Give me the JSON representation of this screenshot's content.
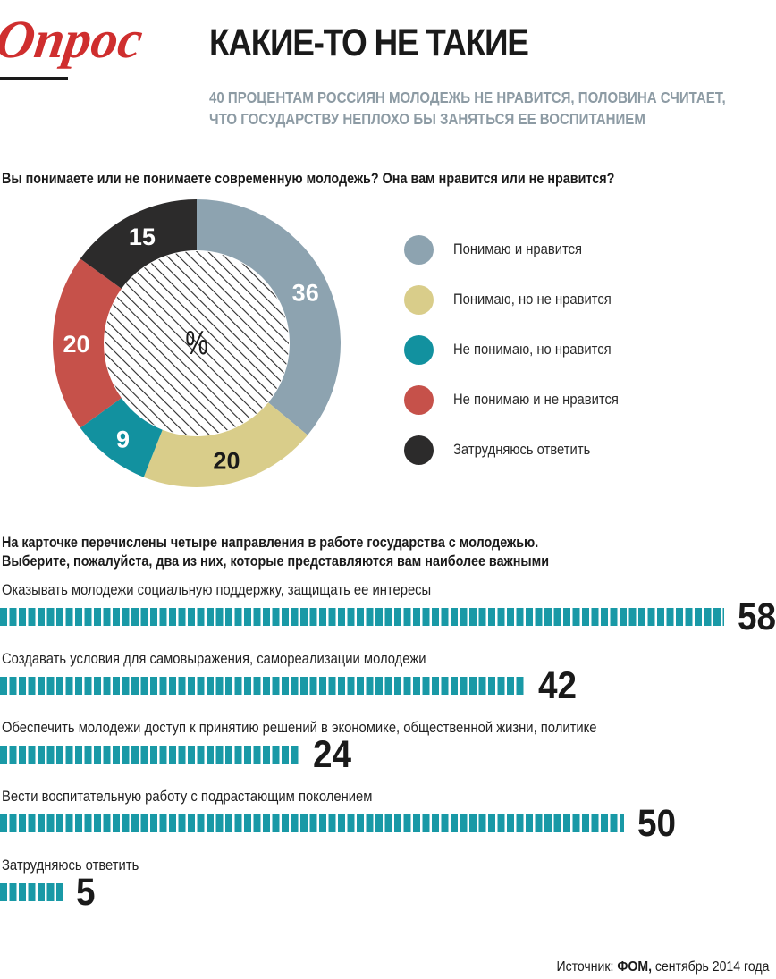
{
  "header": {
    "logo_text": "Опрос",
    "title": "КАКИЕ-ТО НЕ ТАКИЕ",
    "subtitle_line1": "40 ПРОЦЕНТАМ РОССИЯН МОЛОДЕЖЬ НЕ НРАВИТСЯ, ПОЛОВИНА СЧИТАЕТ,",
    "subtitle_line2": "ЧТО ГОСУДАРСТВУ НЕПЛОХО БЫ ЗАНЯТЬСЯ ЕЕ ВОСПИТАНИЕМ"
  },
  "question1": "Вы понимаете или не понимаете современную молодежь? Она вам нравится или не нравится?",
  "question2_line1": "На карточке перечислены четыре направления в работе государства с молодежью.",
  "question2_line2": "Выберите, пожалуйста, два из них, которые представляются вам наиболее важными",
  "source": {
    "prefix": "Источник: ",
    "org": "ФОМ,",
    "date": " сентябрь 2014 года"
  },
  "chart_data": [
    {
      "type": "pie",
      "center_label": "%",
      "categories": [
        "Понимаю и нравится",
        "Понимаю, но не нравится",
        "Не понимаю, но нравится",
        "Не понимаю и не нравится",
        "Затрудняюсь ответить"
      ],
      "values": [
        36,
        20,
        9,
        20,
        15
      ],
      "colors": [
        "#8da3b0",
        "#d9cd8a",
        "#12919f",
        "#c6514a",
        "#2c2b2b"
      ],
      "legend_placement": "right"
    },
    {
      "type": "bar",
      "orientation": "horizontal",
      "categories": [
        "Оказывать молодежи социальную поддержку, защищать ее интересы",
        "Создавать условия для самовыражения, самореализации молодежи",
        "Обеспечить молодежи доступ к принятию решений в экономике, общественной жизни, политике",
        "Вести воспитательную работу с подрастающим поколением",
        "Затрудняюсь ответить"
      ],
      "values": [
        58,
        42,
        24,
        50,
        5
      ],
      "bar_color": "#1999a6"
    }
  ]
}
